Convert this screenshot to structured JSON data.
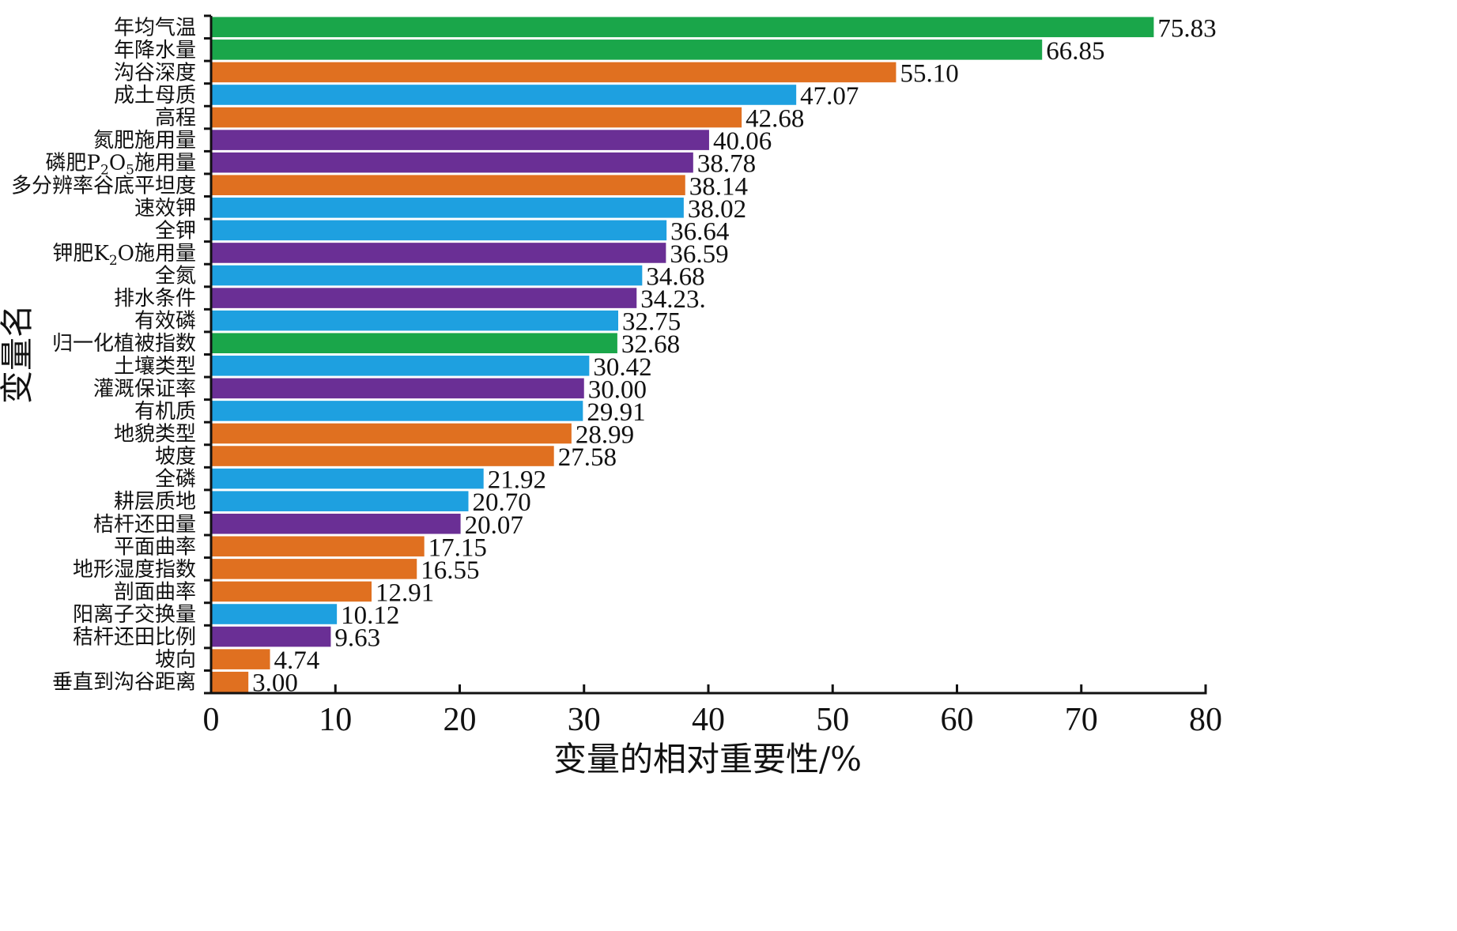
{
  "chart_data": {
    "type": "bar",
    "orientation": "horizontal",
    "xlabel": "变量的相对重要性/%",
    "ylabel": "变量名",
    "xlim": [
      0,
      80
    ],
    "xticks": [
      0,
      10,
      20,
      30,
      40,
      50,
      60,
      70,
      80
    ],
    "grid": false,
    "colors": {
      "green": "#1aa64a",
      "orange": "#e07020",
      "blue": "#1ea0e0",
      "purple": "#6a2f95"
    },
    "categories": [
      "年均气温",
      "年降水量",
      "沟谷深度",
      "成土母质",
      "高程",
      "氮肥施用量",
      "磷肥P2O5施用量",
      "多分辨率谷底平坦度",
      "速效钾",
      "全钾",
      "钾肥K2O施用量",
      "全氮",
      "排水条件",
      "有效磷",
      "归一化植被指数",
      "土壤类型",
      "灌溉保证率",
      "有机质",
      "地貌类型",
      "坡度",
      "全磷",
      "耕层质地",
      "桔杆还田量",
      "平面曲率",
      "地形湿度指数",
      "剖面曲率",
      "阳离子交换量",
      "秸杆还田比例",
      "坡向",
      "垂直到沟谷距离"
    ],
    "values": [
      75.83,
      66.85,
      55.1,
      47.07,
      42.68,
      40.06,
      38.78,
      38.14,
      38.02,
      36.64,
      36.59,
      34.68,
      34.23,
      32.75,
      32.68,
      30.42,
      30.0,
      29.91,
      28.99,
      27.58,
      21.92,
      20.7,
      20.07,
      17.15,
      16.55,
      12.91,
      10.12,
      9.63,
      4.74,
      3.0
    ],
    "value_labels": [
      "75.83",
      "66.85",
      "55.10",
      "47.07",
      "42.68",
      "40.06",
      "38.78",
      "38.14",
      "38.02",
      "36.64",
      "36.59",
      "34.68",
      "34.23.",
      "32.75",
      "32.68",
      "30.42",
      "30.00",
      "29.91",
      "28.99",
      "27.58",
      "21.92",
      "20.70",
      "20.07",
      "17.15",
      "16.55",
      "12.91",
      "10.12",
      "9.63",
      "4.74",
      "3.00"
    ],
    "bar_colors": [
      "green",
      "green",
      "orange",
      "blue",
      "orange",
      "purple",
      "purple",
      "orange",
      "blue",
      "blue",
      "purple",
      "blue",
      "purple",
      "blue",
      "green",
      "blue",
      "purple",
      "blue",
      "orange",
      "orange",
      "blue",
      "blue",
      "purple",
      "orange",
      "orange",
      "orange",
      "blue",
      "purple",
      "orange",
      "orange"
    ]
  }
}
